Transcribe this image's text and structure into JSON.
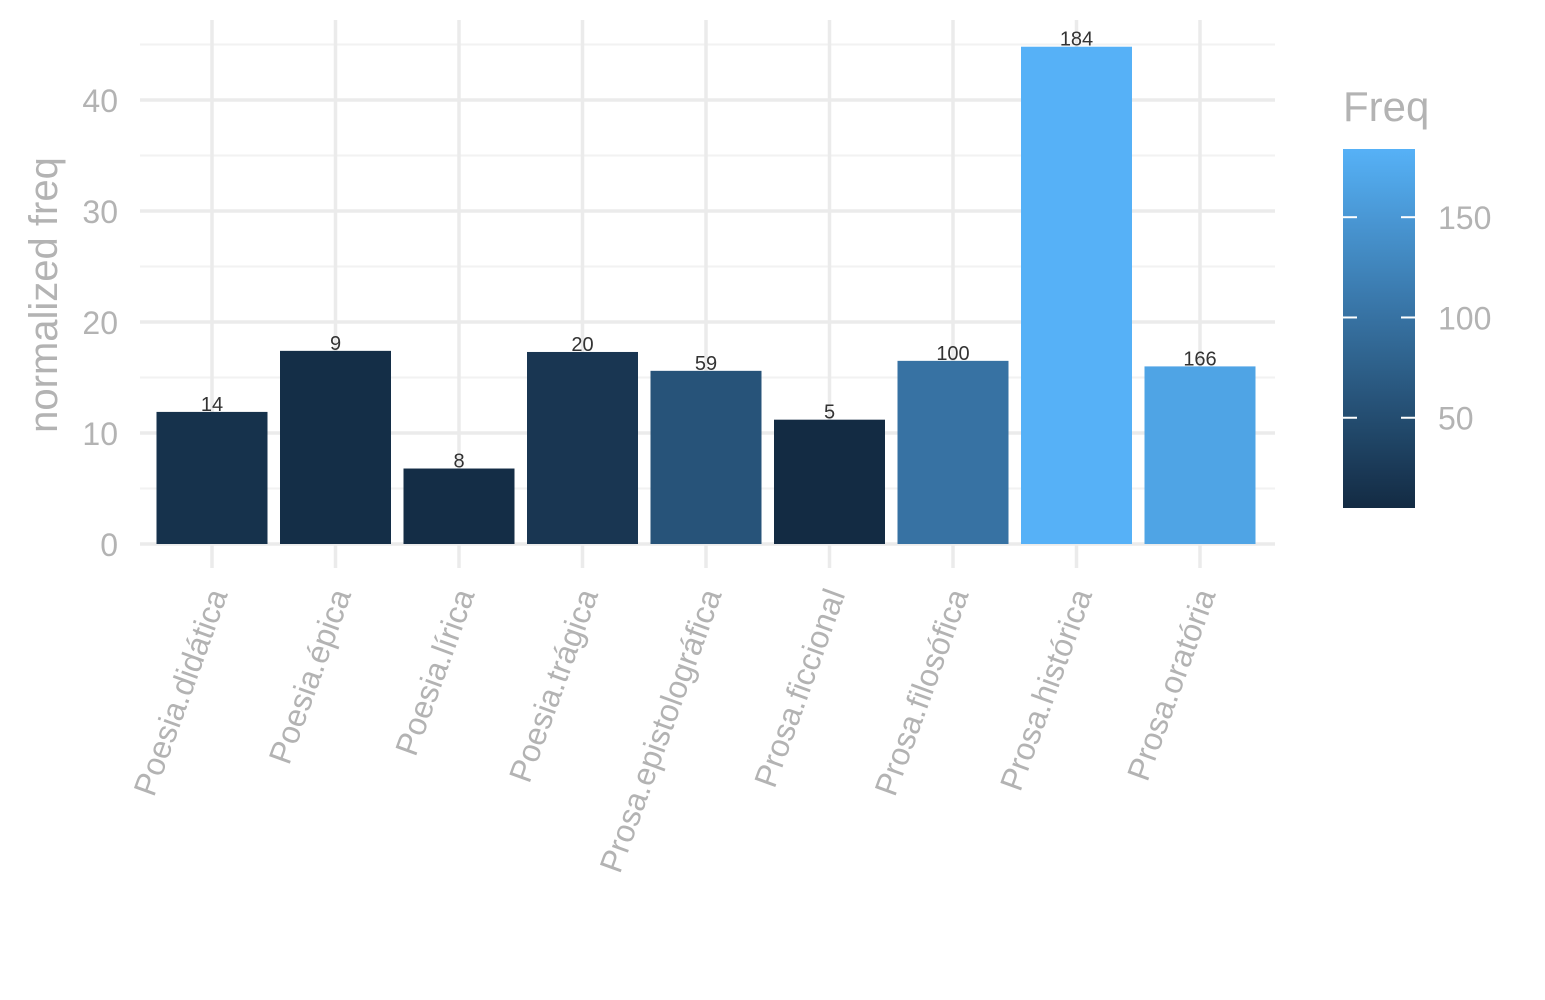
{
  "chart_data": {
    "type": "bar",
    "title": "",
    "xlabel": "",
    "ylabel": "normalized freq",
    "ylim": [
      0,
      45
    ],
    "yticks": [
      0,
      10,
      20,
      30,
      40
    ],
    "grid": true,
    "categories": [
      "Poesia.didática",
      "Poesia.épica",
      "Poesia.lírica",
      "Poesia.trágica",
      "Prosa.epistolográfica",
      "Prosa.ficcional",
      "Prosa.filosófica",
      "Prosa.histórica",
      "Prosa.oratória"
    ],
    "values": [
      11.9,
      17.4,
      6.8,
      17.3,
      15.6,
      11.2,
      16.5,
      44.8,
      16.0
    ],
    "data_labels": [
      "14",
      "9",
      "8",
      "20",
      "59",
      "5",
      "100",
      "184",
      "166"
    ],
    "fill_values": [
      14,
      9,
      8,
      20,
      59,
      5,
      100,
      184,
      166
    ],
    "legend": {
      "title": "Freq",
      "placement": "right",
      "min": 5,
      "max": 184,
      "ticks": [
        50,
        100,
        150
      ],
      "tick_labels": [
        "50",
        "100",
        "150"
      ],
      "low_color": "#132B43",
      "high_color": "#56B1F7"
    }
  }
}
